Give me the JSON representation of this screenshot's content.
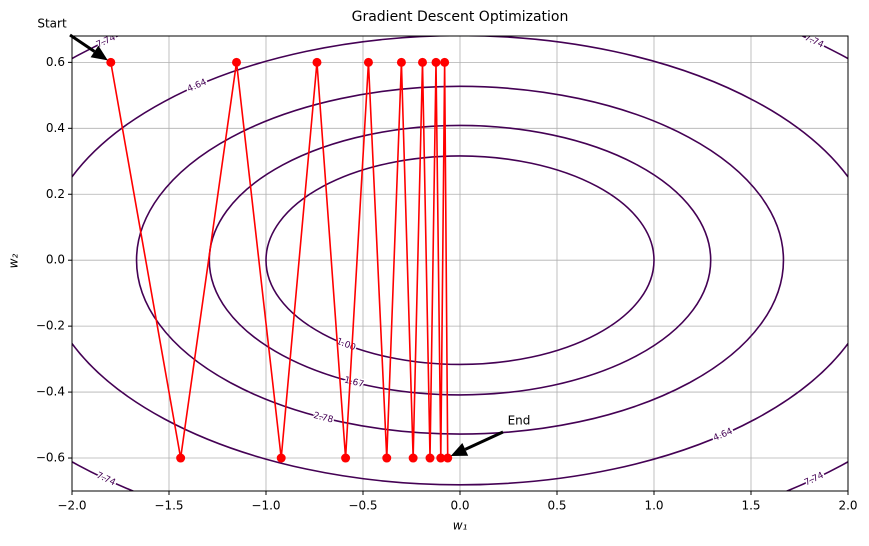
{
  "chart_data": {
    "type": "contour",
    "title": "Gradient Descent Optimization",
    "xlabel": "w₁",
    "ylabel": "w₂",
    "xlim": [
      -2,
      2
    ],
    "ylim": [
      -0.7,
      0.68
    ],
    "xticks": [
      {
        "value": -2,
        "label": "−2.0"
      },
      {
        "value": -1.5,
        "label": "−1.5"
      },
      {
        "value": -1,
        "label": "−1.0"
      },
      {
        "value": -0.5,
        "label": "−0.5"
      },
      {
        "value": 0,
        "label": "0.0"
      },
      {
        "value": 0.5,
        "label": "0.5"
      },
      {
        "value": 1,
        "label": "1.0"
      },
      {
        "value": 1.5,
        "label": "1.5"
      },
      {
        "value": 2,
        "label": "2.0"
      }
    ],
    "yticks": [
      {
        "value": -0.6,
        "label": "−0.6"
      },
      {
        "value": -0.4,
        "label": "−0.4"
      },
      {
        "value": -0.2,
        "label": "−0.2"
      },
      {
        "value": 0,
        "label": "0.0"
      },
      {
        "value": 0.2,
        "label": "0.2"
      },
      {
        "value": 0.4,
        "label": "0.4"
      },
      {
        "value": 0.6,
        "label": "0.6"
      }
    ],
    "grid": true,
    "contour": {
      "levels": [
        {
          "value": 1,
          "label": "1.00"
        },
        1.67,
        2.78,
        4.64,
        7.74
      ],
      "color": "#440154"
    },
    "series": [
      {
        "color": "#ff0000",
        "x": [
          -1.8,
          -1.44,
          -1.152,
          -0.9216,
          -0.7373,
          -0.5898,
          -0.4719,
          -0.3775,
          -0.302,
          -0.2416,
          -0.1933,
          -0.1546,
          -0.1237,
          -0.099,
          -0.0792,
          -0.0633
        ],
        "values": [
          0.6,
          -0.6,
          0.6,
          -0.6,
          0.6,
          -0.6,
          0.6,
          -0.6,
          0.6,
          -0.6,
          0.6,
          -0.6,
          0.6,
          -0.6,
          0.6,
          -0.6
        ]
      }
    ],
    "annotations": [
      {
        "text": "Start"
      },
      {
        "text": "End"
      }
    ]
  }
}
